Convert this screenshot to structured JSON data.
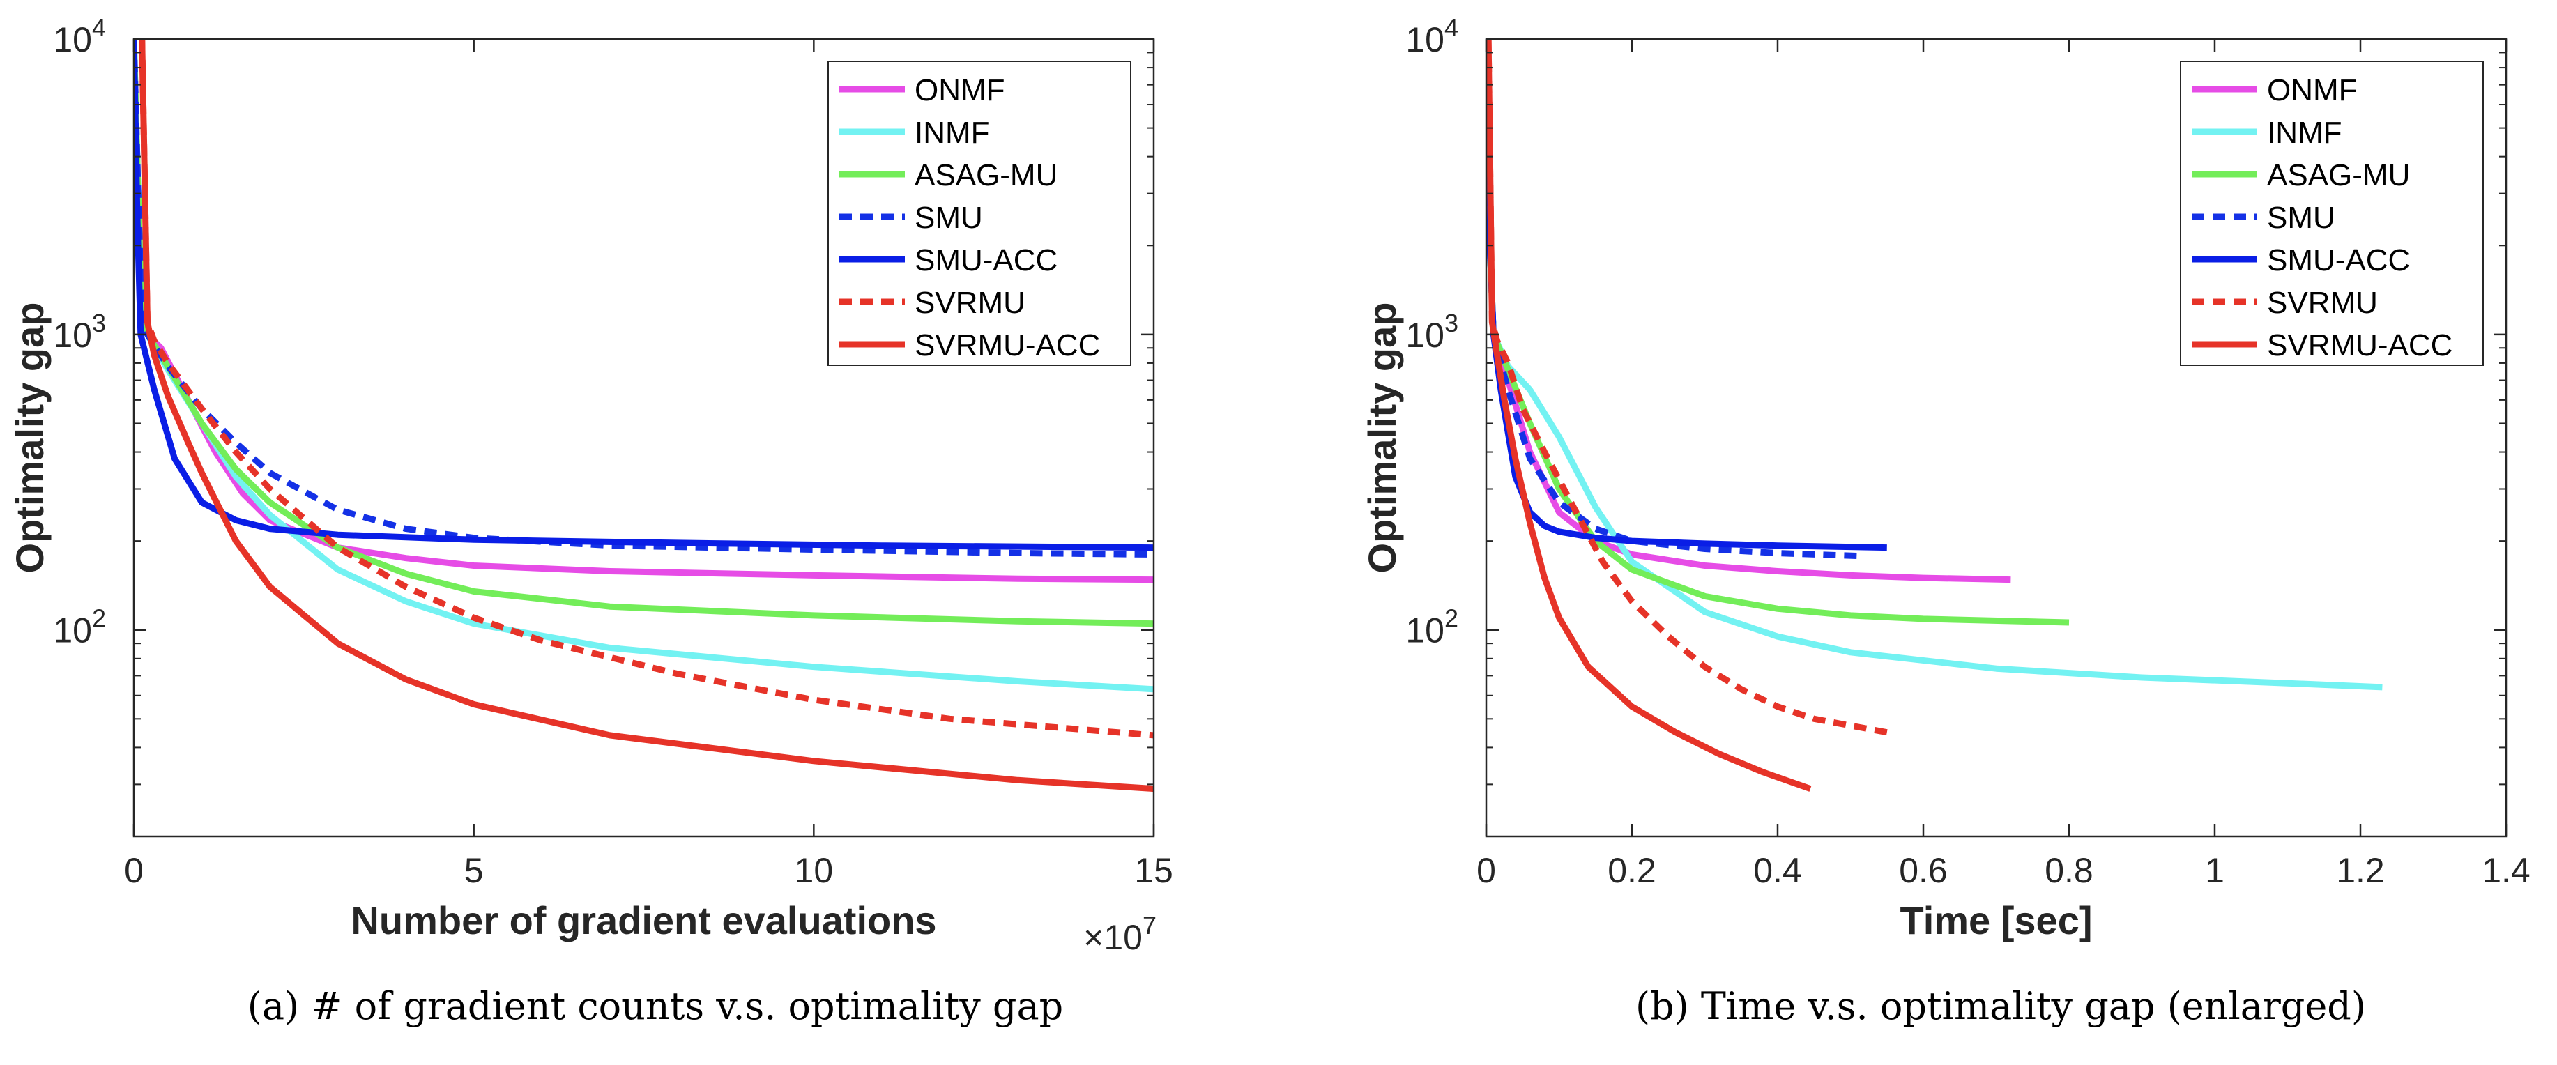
{
  "chart_data": [
    {
      "type": "line",
      "yscale": "log",
      "xlabel": "Number of gradient evaluations",
      "ylabel": "Optimality gap",
      "x_multiplier_label": "×10",
      "x_multiplier_exp": "7",
      "xlim": [
        0,
        15
      ],
      "ylim": [
        20,
        10000
      ],
      "xticks": [
        0,
        5,
        10,
        15
      ],
      "xtick_labels": [
        "0",
        "5",
        "10",
        "15"
      ],
      "yticks": [
        100,
        1000,
        10000
      ],
      "ytick_base": "10",
      "ytick_exps": [
        "2",
        "3",
        "4"
      ],
      "caption": "(a) # of gradient counts v.s. optimality gap",
      "legend": {
        "position": "top-right"
      },
      "series": [
        {
          "name": "ONMF",
          "color": "#e64ce6",
          "dash": "solid",
          "x": [
            0,
            0.1,
            0.2,
            0.4,
            0.8,
            1.2,
            1.6,
            2,
            3,
            4,
            5,
            7,
            10,
            13,
            15
          ],
          "y": [
            10000,
            1500,
            1000,
            900,
            600,
            400,
            290,
            235,
            190,
            175,
            165,
            158,
            153,
            149,
            148
          ]
        },
        {
          "name": "INMF",
          "color": "#73f2f2",
          "dash": "solid",
          "x": [
            0,
            0.1,
            0.2,
            0.5,
            1,
            1.5,
            2,
            3,
            4,
            5,
            7,
            10,
            13,
            15
          ],
          "y": [
            10000,
            1500,
            1000,
            760,
            500,
            330,
            245,
            160,
            125,
            105,
            87,
            75,
            67,
            63
          ]
        },
        {
          "name": "ASAG-MU",
          "color": "#73ed59",
          "dash": "solid",
          "x": [
            0,
            0.1,
            0.2,
            0.5,
            1,
            1.5,
            2,
            3,
            4,
            5,
            7,
            10,
            13,
            15
          ],
          "y": [
            10000,
            1500,
            1000,
            780,
            500,
            350,
            270,
            190,
            155,
            135,
            120,
            112,
            107,
            105
          ]
        },
        {
          "name": "SMU",
          "color": "#1431e6",
          "dash": "dotted",
          "x": [
            0,
            0.1,
            0.2,
            0.5,
            1,
            1.5,
            2,
            3,
            4,
            5,
            7,
            10,
            13,
            15
          ],
          "y": [
            10000,
            1500,
            1000,
            780,
            560,
            430,
            340,
            255,
            220,
            205,
            193,
            187,
            182,
            180
          ]
        },
        {
          "name": "SMU-ACC",
          "color": "#0a1ee6",
          "dash": "solid",
          "x": [
            0,
            0.05,
            0.1,
            0.3,
            0.6,
            1,
            1.5,
            2,
            3,
            5,
            8,
            11,
            15
          ],
          "y": [
            10000,
            2500,
            1000,
            650,
            380,
            270,
            235,
            220,
            210,
            202,
            197,
            193,
            190
          ]
        },
        {
          "name": "SVRMU",
          "color": "#e63328",
          "dash": "dotted",
          "x": [
            0.12,
            0.2,
            0.3,
            0.5,
            1,
            1.5,
            2,
            3,
            4,
            5,
            6,
            8,
            10,
            12,
            15
          ],
          "y": [
            10000,
            1100,
            950,
            800,
            560,
            400,
            300,
            190,
            140,
            110,
            92,
            71,
            58,
            50,
            44
          ]
        },
        {
          "name": "SVRMU-ACC",
          "color": "#e63328",
          "dash": "solid",
          "x": [
            0.12,
            0.2,
            0.3,
            0.5,
            0.8,
            1,
            1.5,
            2,
            3,
            4,
            5,
            7,
            10,
            13,
            15
          ],
          "y": [
            10000,
            1100,
            850,
            620,
            430,
            340,
            200,
            140,
            90,
            68,
            56,
            44,
            36,
            31,
            29
          ]
        }
      ]
    },
    {
      "type": "line",
      "yscale": "log",
      "xlabel": "Time [sec]",
      "ylabel": "Optimality gap",
      "xlim": [
        0,
        1.4
      ],
      "ylim": [
        20,
        10000
      ],
      "xticks": [
        0,
        0.2,
        0.4,
        0.6,
        0.8,
        1,
        1.2,
        1.4
      ],
      "xtick_labels": [
        "0",
        "0.2",
        "0.4",
        "0.6",
        "0.8",
        "1",
        "1.2",
        "1.4"
      ],
      "yticks": [
        100,
        1000,
        10000
      ],
      "ytick_base": "10",
      "ytick_exps": [
        "2",
        "3",
        "4"
      ],
      "caption": "(b) Time v.s. optimality gap (enlarged)",
      "legend": {
        "position": "top-right"
      },
      "series": [
        {
          "name": "ONMF",
          "color": "#e64ce6",
          "dash": "solid",
          "x": [
            0,
            0.005,
            0.01,
            0.03,
            0.06,
            0.1,
            0.15,
            0.2,
            0.3,
            0.4,
            0.5,
            0.6,
            0.72
          ],
          "y": [
            10000,
            2000,
            1000,
            700,
            400,
            250,
            200,
            180,
            165,
            158,
            153,
            150,
            148
          ]
        },
        {
          "name": "INMF",
          "color": "#73f2f2",
          "dash": "solid",
          "x": [
            0,
            0.005,
            0.01,
            0.03,
            0.06,
            0.1,
            0.15,
            0.2,
            0.3,
            0.4,
            0.5,
            0.7,
            0.9,
            1.1,
            1.23
          ],
          "y": [
            10000,
            2000,
            1000,
            780,
            650,
            450,
            260,
            170,
            115,
            95,
            84,
            74,
            69,
            66,
            64
          ]
        },
        {
          "name": "ASAG-MU",
          "color": "#73ed59",
          "dash": "solid",
          "x": [
            0,
            0.005,
            0.01,
            0.03,
            0.06,
            0.1,
            0.15,
            0.2,
            0.3,
            0.4,
            0.5,
            0.6,
            0.8
          ],
          "y": [
            10000,
            2000,
            1000,
            760,
            500,
            300,
            200,
            160,
            130,
            118,
            112,
            109,
            106
          ]
        },
        {
          "name": "SMU",
          "color": "#1431e6",
          "dash": "dotted",
          "x": [
            0,
            0.005,
            0.01,
            0.03,
            0.06,
            0.1,
            0.15,
            0.2,
            0.3,
            0.4,
            0.51
          ],
          "y": [
            10000,
            2000,
            1000,
            650,
            380,
            270,
            220,
            200,
            188,
            182,
            178
          ]
        },
        {
          "name": "SMU-ACC",
          "color": "#0a1ee6",
          "dash": "solid",
          "x": [
            0,
            0.005,
            0.01,
            0.02,
            0.04,
            0.06,
            0.08,
            0.1,
            0.15,
            0.2,
            0.3,
            0.4,
            0.55
          ],
          "y": [
            10000,
            2000,
            1000,
            650,
            330,
            250,
            225,
            215,
            205,
            200,
            196,
            193,
            190
          ]
        },
        {
          "name": "SVRMU",
          "color": "#e63328",
          "dash": "dotted",
          "x": [
            0.003,
            0.008,
            0.015,
            0.03,
            0.05,
            0.08,
            0.12,
            0.16,
            0.2,
            0.25,
            0.3,
            0.35,
            0.4,
            0.45,
            0.55
          ],
          "y": [
            10000,
            1100,
            950,
            800,
            560,
            400,
            260,
            170,
            125,
            95,
            75,
            63,
            55,
            50,
            45
          ]
        },
        {
          "name": "SVRMU-ACC",
          "color": "#e63328",
          "dash": "solid",
          "x": [
            0.003,
            0.008,
            0.015,
            0.025,
            0.04,
            0.06,
            0.08,
            0.1,
            0.14,
            0.2,
            0.26,
            0.32,
            0.38,
            0.445
          ],
          "y": [
            10000,
            1100,
            850,
            600,
            380,
            230,
            150,
            110,
            75,
            55,
            45,
            38,
            33,
            29
          ]
        }
      ]
    }
  ]
}
